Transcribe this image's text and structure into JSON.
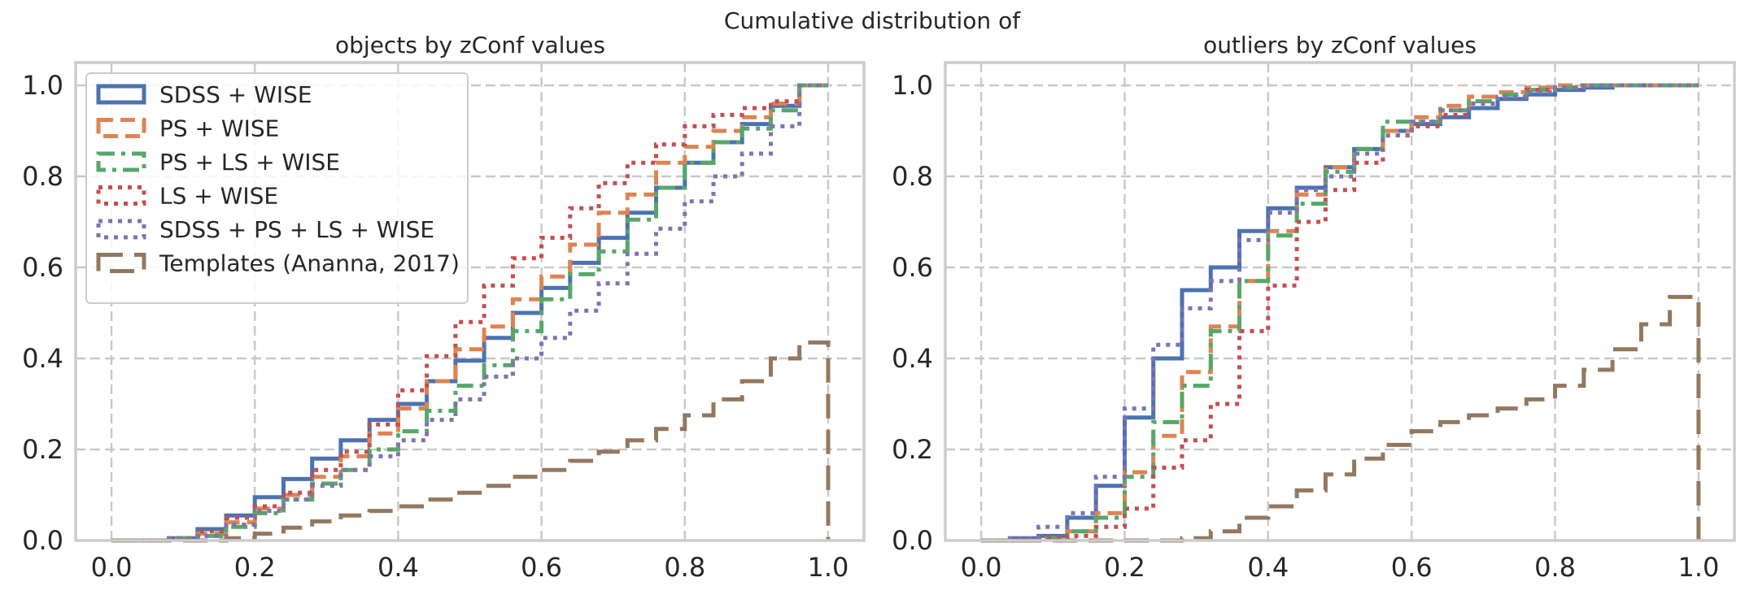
{
  "figure": {
    "suptitle": "Cumulative distribution of"
  },
  "styles": {
    "SDSS + WISE": {
      "color": "#4c72b0",
      "dash": "solid"
    },
    "PS + WISE": {
      "color": "#dd8452",
      "dash": "dashed"
    },
    "PS + LS + WISE": {
      "color": "#55a868",
      "dash": "dashdot"
    },
    "LS + WISE": {
      "color": "#c44e52",
      "dash": "dotted"
    },
    "SDSS + PS + LS + WISE": {
      "color": "#8172b3",
      "dash": "dotted"
    },
    "Templates (Ananna, 2017)": {
      "color": "#937860",
      "dash": "longdash"
    }
  },
  "chart_data": [
    {
      "type": "line",
      "step": "post",
      "title": "objects by zConf values",
      "xlim": [
        -0.05,
        1.05
      ],
      "ylim": [
        0,
        1.05
      ],
      "xticks": [
        "0.0",
        "0.2",
        "0.4",
        "0.6",
        "0.8",
        "1.0"
      ],
      "yticks": [
        "0.0",
        "0.2",
        "0.4",
        "0.6",
        "0.8",
        "1.0"
      ],
      "grid": true,
      "legend": {
        "position": "upper-left",
        "entries": [
          "SDSS + WISE",
          "PS + WISE",
          "PS + LS + WISE",
          "LS + WISE",
          "SDSS + PS + LS + WISE",
          "Templates (Ananna, 2017)"
        ]
      },
      "x": [
        0.0,
        0.04,
        0.08,
        0.12,
        0.16,
        0.2,
        0.24,
        0.28,
        0.32,
        0.36,
        0.4,
        0.44,
        0.48,
        0.52,
        0.56,
        0.6,
        0.64,
        0.68,
        0.72,
        0.76,
        0.8,
        0.84,
        0.88,
        0.92,
        0.96,
        1.0
      ],
      "series": [
        {
          "name": "SDSS + WISE",
          "values": [
            0.0,
            0.0,
            0.005,
            0.025,
            0.055,
            0.095,
            0.135,
            0.18,
            0.22,
            0.265,
            0.3,
            0.35,
            0.395,
            0.445,
            0.5,
            0.555,
            0.61,
            0.665,
            0.72,
            0.775,
            0.83,
            0.875,
            0.915,
            0.955,
            1.0,
            1.0
          ]
        },
        {
          "name": "PS + WISE",
          "values": [
            0.0,
            0.0,
            0.005,
            0.015,
            0.04,
            0.07,
            0.1,
            0.14,
            0.185,
            0.235,
            0.29,
            0.35,
            0.42,
            0.47,
            0.53,
            0.58,
            0.65,
            0.72,
            0.76,
            0.83,
            0.865,
            0.9,
            0.93,
            0.96,
            1.0,
            1.0
          ]
        },
        {
          "name": "PS + LS + WISE",
          "values": [
            0.0,
            0.0,
            0.005,
            0.01,
            0.03,
            0.06,
            0.09,
            0.125,
            0.155,
            0.2,
            0.24,
            0.285,
            0.34,
            0.385,
            0.46,
            0.53,
            0.585,
            0.635,
            0.705,
            0.775,
            0.83,
            0.875,
            0.905,
            0.945,
            1.0,
            1.0
          ]
        },
        {
          "name": "LS + WISE",
          "values": [
            0.0,
            0.0,
            0.005,
            0.02,
            0.05,
            0.075,
            0.105,
            0.155,
            0.195,
            0.255,
            0.33,
            0.405,
            0.48,
            0.56,
            0.62,
            0.665,
            0.73,
            0.785,
            0.83,
            0.87,
            0.91,
            0.935,
            0.95,
            0.965,
            1.0,
            1.0
          ]
        },
        {
          "name": "SDSS + PS + LS + WISE",
          "values": [
            0.0,
            0.0,
            0.005,
            0.01,
            0.035,
            0.065,
            0.09,
            0.12,
            0.155,
            0.185,
            0.22,
            0.265,
            0.31,
            0.36,
            0.4,
            0.445,
            0.505,
            0.565,
            0.63,
            0.685,
            0.745,
            0.8,
            0.85,
            0.91,
            1.0,
            1.0
          ]
        },
        {
          "name": "Templates (Ananna, 2017)",
          "values": [
            0.0,
            0.0,
            0.0,
            0.0,
            0.005,
            0.015,
            0.028,
            0.042,
            0.055,
            0.065,
            0.075,
            0.09,
            0.105,
            0.12,
            0.14,
            0.155,
            0.175,
            0.195,
            0.22,
            0.245,
            0.275,
            0.31,
            0.35,
            0.4,
            0.435,
            0.0
          ]
        }
      ]
    },
    {
      "type": "line",
      "step": "post",
      "title": "outliers by zConf values",
      "xlim": [
        -0.05,
        1.05
      ],
      "ylim": [
        0,
        1.05
      ],
      "xticks": [
        "0.0",
        "0.2",
        "0.4",
        "0.6",
        "0.8",
        "1.0"
      ],
      "yticks": [
        "0.0",
        "0.2",
        "0.4",
        "0.6",
        "0.8",
        "1.0"
      ],
      "grid": true,
      "x": [
        0.0,
        0.04,
        0.08,
        0.12,
        0.16,
        0.2,
        0.24,
        0.28,
        0.32,
        0.36,
        0.4,
        0.44,
        0.48,
        0.52,
        0.56,
        0.6,
        0.64,
        0.68,
        0.72,
        0.76,
        0.8,
        0.84,
        0.88,
        0.92,
        0.96,
        1.0
      ],
      "series": [
        {
          "name": "SDSS + WISE",
          "values": [
            0.0,
            0.005,
            0.01,
            0.05,
            0.12,
            0.27,
            0.4,
            0.55,
            0.6,
            0.68,
            0.73,
            0.775,
            0.82,
            0.86,
            0.9,
            0.915,
            0.93,
            0.95,
            0.97,
            0.98,
            0.99,
            0.995,
            1.0,
            1.0,
            1.0,
            1.0
          ]
        },
        {
          "name": "PS + WISE",
          "values": [
            0.0,
            0.0,
            0.005,
            0.02,
            0.06,
            0.15,
            0.23,
            0.37,
            0.47,
            0.57,
            0.68,
            0.76,
            0.82,
            0.86,
            0.9,
            0.93,
            0.955,
            0.975,
            0.985,
            0.995,
            1.0,
            1.0,
            1.0,
            1.0,
            1.0,
            1.0
          ]
        },
        {
          "name": "PS + LS + WISE",
          "values": [
            0.0,
            0.0,
            0.005,
            0.02,
            0.05,
            0.14,
            0.26,
            0.34,
            0.46,
            0.57,
            0.67,
            0.74,
            0.81,
            0.86,
            0.92,
            0.92,
            0.945,
            0.965,
            0.98,
            0.99,
            0.995,
            1.0,
            1.0,
            1.0,
            1.0,
            1.0
          ]
        },
        {
          "name": "LS + WISE",
          "values": [
            0.0,
            0.0,
            0.005,
            0.01,
            0.03,
            0.07,
            0.16,
            0.22,
            0.3,
            0.46,
            0.56,
            0.7,
            0.77,
            0.83,
            0.89,
            0.91,
            0.935,
            0.96,
            0.975,
            0.99,
            0.995,
            1.0,
            1.0,
            1.0,
            1.0,
            1.0
          ]
        },
        {
          "name": "SDSS + PS + LS + WISE",
          "values": [
            0.0,
            0.005,
            0.03,
            0.06,
            0.14,
            0.29,
            0.43,
            0.51,
            0.57,
            0.66,
            0.72,
            0.77,
            0.8,
            0.85,
            0.89,
            0.92,
            0.945,
            0.96,
            0.975,
            0.985,
            0.995,
            1.0,
            1.0,
            1.0,
            1.0,
            1.0
          ]
        },
        {
          "name": "Templates (Ananna, 2017)",
          "values": [
            0.0,
            0.0,
            0.0,
            0.0,
            0.0,
            0.0,
            0.0,
            0.005,
            0.02,
            0.05,
            0.075,
            0.11,
            0.145,
            0.18,
            0.21,
            0.24,
            0.26,
            0.275,
            0.29,
            0.31,
            0.34,
            0.375,
            0.42,
            0.475,
            0.535,
            0.0
          ]
        }
      ]
    }
  ]
}
